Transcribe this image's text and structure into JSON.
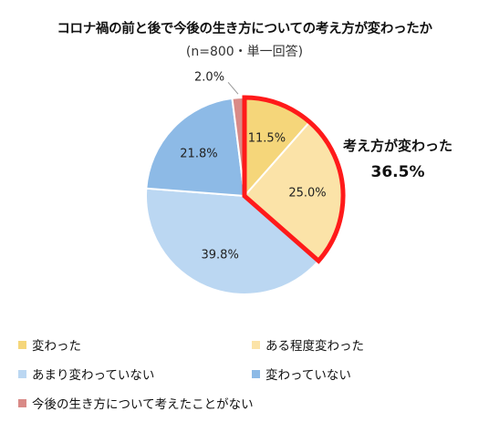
{
  "chart_data": {
    "type": "pie",
    "title": "コロナ禍の前と後で今後の生き方についての考え方が変わったか",
    "subtitle": "(n=800・単一回答)",
    "slices": [
      {
        "name": "変わった",
        "value": 11.5,
        "label": "11.5%",
        "color": "#F5D67A"
      },
      {
        "name": "ある程度変わった",
        "value": 25.0,
        "label": "25.0%",
        "color": "#FBE3A8"
      },
      {
        "name": "あまり変わっていない",
        "value": 39.8,
        "label": "39.8%",
        "color": "#BBD7F2"
      },
      {
        "name": "変わっていない",
        "value": 21.8,
        "label": "21.8%",
        "color": "#8DBAE6"
      },
      {
        "name": "今後の生き方について考えたことがない",
        "value": 2.0,
        "label": "2.0%",
        "color": "#D98A87"
      }
    ],
    "highlight": {
      "label": "考え方が変わった",
      "value": "36.5%",
      "slice_indices": [
        0,
        1
      ],
      "border_color": "#FF1A1A"
    },
    "legend_placement": "bottom"
  }
}
